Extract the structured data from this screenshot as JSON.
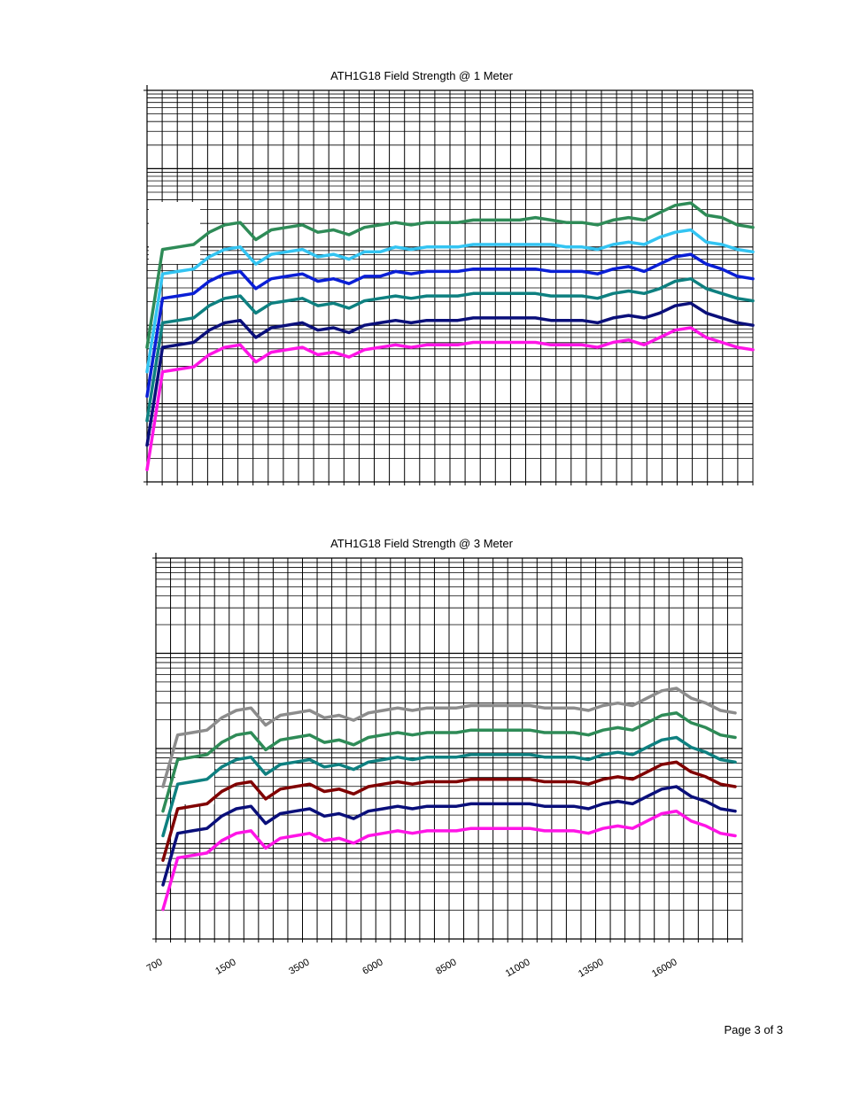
{
  "footer": {
    "page_label": "Page 3 of 3"
  },
  "chart_data": [
    {
      "type": "line",
      "title": "ATH1G18 Field Strength @ 1 Meter",
      "xlabel": "",
      "ylabel": "",
      "x_ticks": [],
      "grid": true,
      "series_colors": [
        "#2e8b57",
        "#33c4f2",
        "#0a1fd6",
        "#0e8080",
        "#0a0f7a",
        "#ff14e6"
      ],
      "series": [
        {
          "color": "#2e8b57",
          "values": [
            15,
            55,
            56,
            57,
            62,
            65,
            66,
            59,
            63,
            64,
            65,
            62,
            63,
            61,
            64,
            65,
            66,
            65,
            66,
            66,
            66,
            67,
            67,
            67,
            67,
            68,
            67,
            66,
            66,
            65,
            67,
            68,
            67,
            70,
            73,
            74,
            69,
            68,
            65,
            64
          ]
        },
        {
          "color": "#33c4f2",
          "values": [
            5,
            45,
            46,
            47,
            52,
            55,
            56,
            49,
            53,
            54,
            55,
            52,
            53,
            51,
            54,
            54,
            56,
            55,
            56,
            56,
            56,
            57,
            57,
            57,
            57,
            57,
            57,
            56,
            56,
            55,
            57,
            58,
            57,
            60,
            62,
            63,
            58,
            57,
            55,
            54
          ]
        },
        {
          "color": "#0a1fd6",
          "values": [
            -5,
            35,
            36,
            37,
            42,
            45,
            46,
            39,
            43,
            44,
            45,
            42,
            43,
            41,
            44,
            44,
            46,
            45,
            46,
            46,
            46,
            47,
            47,
            47,
            47,
            47,
            46,
            46,
            46,
            45,
            47,
            48,
            46,
            49,
            52,
            53,
            49,
            47,
            44,
            43
          ]
        },
        {
          "color": "#0e8080",
          "values": [
            -15,
            25,
            26,
            27,
            32,
            35,
            36,
            29,
            33,
            34,
            35,
            32,
            33,
            31,
            34,
            35,
            36,
            35,
            36,
            36,
            36,
            37,
            37,
            37,
            37,
            37,
            36,
            36,
            36,
            35,
            37,
            38,
            37,
            39,
            42,
            43,
            39,
            37,
            35,
            34
          ]
        },
        {
          "color": "#0a0f7a",
          "values": [
            -25,
            15,
            16,
            17,
            22,
            25,
            26,
            19,
            23,
            24,
            25,
            22,
            23,
            21,
            24,
            25,
            26,
            25,
            26,
            26,
            26,
            27,
            27,
            27,
            27,
            27,
            26,
            26,
            26,
            25,
            27,
            28,
            27,
            29,
            32,
            33,
            29,
            27,
            25,
            24
          ]
        },
        {
          "color": "#ff14e6",
          "values": [
            -35,
            5,
            6,
            7,
            12,
            15,
            16,
            9,
            13,
            14,
            15,
            12,
            13,
            11,
            14,
            15,
            16,
            15,
            16,
            16,
            16,
            17,
            17,
            17,
            17,
            17,
            16,
            16,
            16,
            15,
            17,
            18,
            16,
            19,
            22,
            23,
            19,
            17,
            15,
            14
          ]
        }
      ]
    },
    {
      "type": "line",
      "title": "ATH1G18 Field Strength @ 3 Meter",
      "xlabel": "",
      "ylabel": "",
      "x_ticks": [
        "700",
        "1500",
        "3500",
        "6000",
        "8500",
        "11000",
        "13500",
        "16000"
      ],
      "grid": true,
      "series_colors": [
        "#8c8c8c",
        "#2e8b57",
        "#0e8080",
        "#800000",
        "#0a0f7a",
        "#ff14e6"
      ],
      "series": [
        {
          "color": "#8c8c8c",
          "values": [
            17,
            38,
            39,
            40,
            45,
            48,
            49,
            42,
            46,
            47,
            48,
            45,
            46,
            44,
            47,
            48,
            49,
            48,
            49,
            49,
            49,
            50,
            50,
            50,
            50,
            50,
            49,
            49,
            49,
            48,
            50,
            51,
            50,
            53,
            56,
            57,
            53,
            51,
            48,
            47
          ]
        },
        {
          "color": "#2e8b57",
          "values": [
            7,
            28,
            29,
            30,
            35,
            38,
            39,
            32,
            36,
            37,
            38,
            35,
            36,
            34,
            37,
            38,
            39,
            38,
            39,
            39,
            39,
            40,
            40,
            40,
            40,
            40,
            39,
            39,
            39,
            38,
            40,
            41,
            40,
            43,
            46,
            47,
            43,
            41,
            38,
            37
          ]
        },
        {
          "color": "#0e8080",
          "values": [
            -3,
            18,
            19,
            20,
            25,
            28,
            29,
            22,
            26,
            27,
            28,
            25,
            26,
            24,
            27,
            28,
            29,
            28,
            29,
            29,
            29,
            30,
            30,
            30,
            30,
            30,
            29,
            29,
            29,
            28,
            30,
            31,
            30,
            33,
            36,
            37,
            33,
            31,
            28,
            27
          ]
        },
        {
          "color": "#800000",
          "values": [
            -13,
            8,
            9,
            10,
            15,
            18,
            19,
            12,
            16,
            17,
            18,
            15,
            16,
            14,
            17,
            18,
            19,
            18,
            19,
            19,
            19,
            20,
            20,
            20,
            20,
            20,
            19,
            19,
            19,
            18,
            20,
            21,
            20,
            23,
            26,
            27,
            23,
            21,
            18,
            17
          ]
        },
        {
          "color": "#0a0f7a",
          "values": [
            -23,
            -2,
            -1,
            0,
            5,
            8,
            9,
            2,
            6,
            7,
            8,
            5,
            6,
            4,
            7,
            8,
            9,
            8,
            9,
            9,
            9,
            10,
            10,
            10,
            10,
            10,
            9,
            9,
            9,
            8,
            10,
            11,
            10,
            13,
            16,
            17,
            13,
            11,
            8,
            7
          ]
        },
        {
          "color": "#ff14e6",
          "values": [
            -33,
            -12,
            -11,
            -10,
            -5,
            -2,
            -1,
            -8,
            -4,
            -3,
            -2,
            -5,
            -4,
            -6,
            -3,
            -2,
            -1,
            -2,
            -1,
            -1,
            -1,
            0,
            0,
            0,
            0,
            0,
            -1,
            -1,
            -1,
            -2,
            0,
            1,
            0,
            3,
            6,
            7,
            3,
            1,
            -2,
            -3
          ]
        }
      ]
    }
  ]
}
